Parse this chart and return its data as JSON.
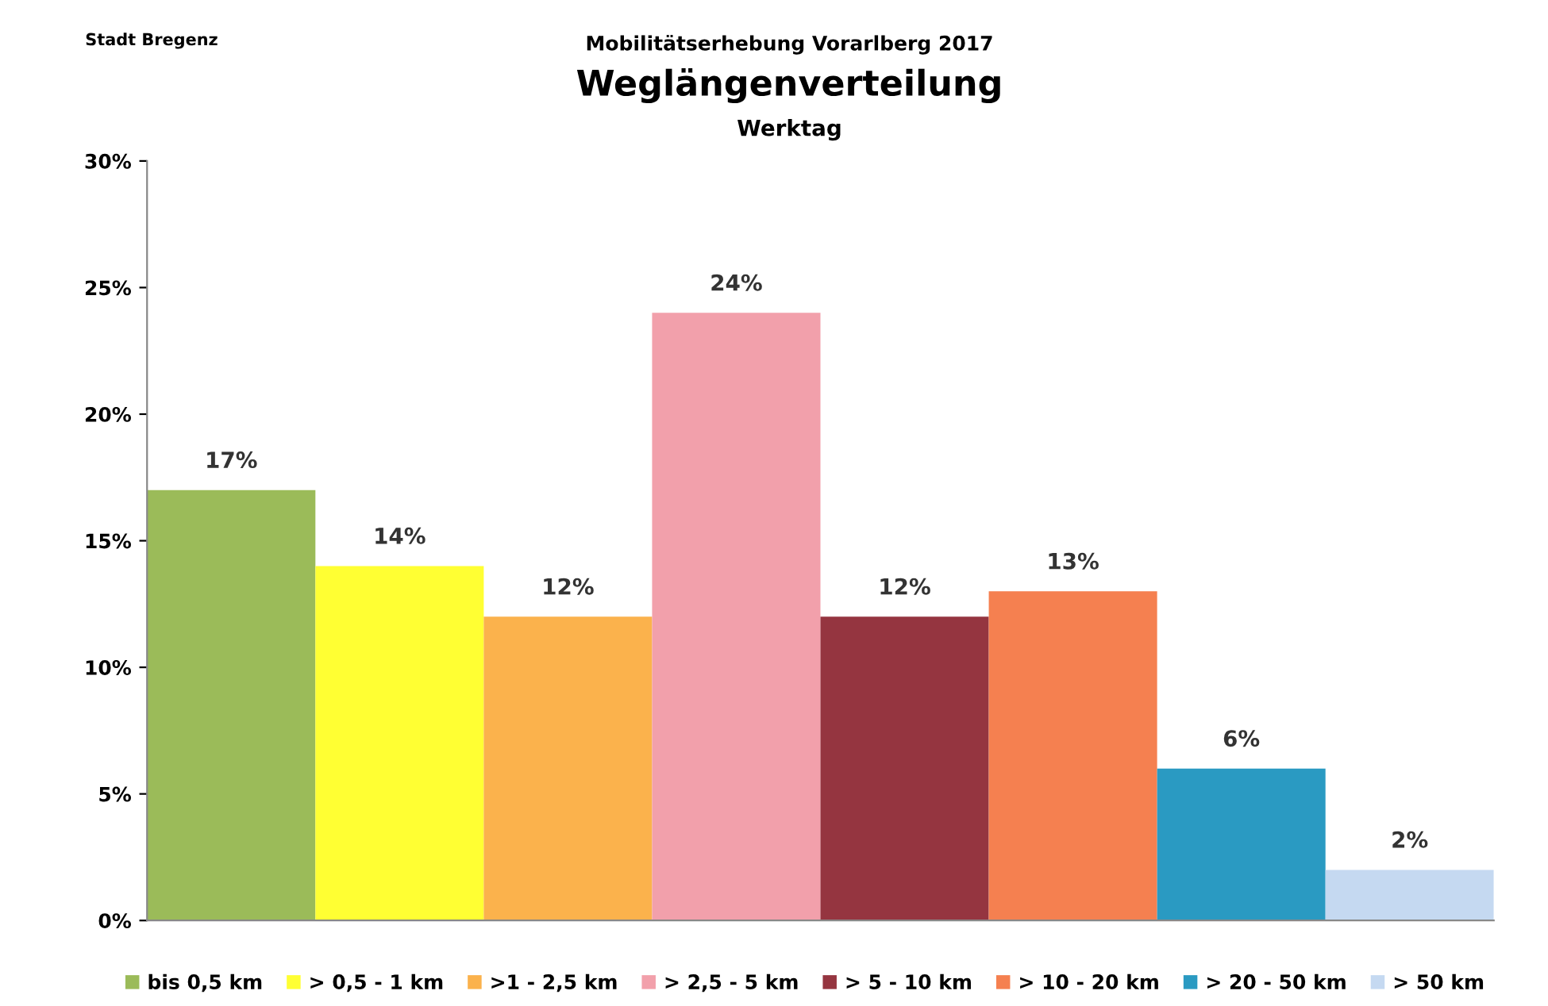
{
  "chart_data": {
    "type": "bar",
    "title": "Weglängenverteilung",
    "subtitle": "Werktag",
    "annotations": [
      "Stadt Bregenz",
      "Mobilitätserhebung Vorarlberg 2017"
    ],
    "categories": [
      null,
      null,
      null,
      null,
      null,
      null,
      null,
      null
    ],
    "series": [
      {
        "name": "bis 0,5 km",
        "color": "#9bbb59",
        "values": [
          17,
          null,
          null,
          null,
          null,
          null,
          null,
          null
        ],
        "value_labels": [
          "17%",
          null,
          null,
          null,
          null,
          null,
          null,
          null
        ]
      },
      {
        "name": "> 0,5 - 1 km",
        "color": "#ffff33",
        "values": [
          null,
          14,
          null,
          null,
          null,
          null,
          null,
          null
        ],
        "value_labels": [
          null,
          "14%",
          null,
          null,
          null,
          null,
          null,
          null
        ]
      },
      {
        "name": ">1 - 2,5 km",
        "color": "#fbb24c",
        "values": [
          null,
          null,
          12,
          null,
          null,
          null,
          null,
          null
        ],
        "value_labels": [
          null,
          null,
          "12%",
          null,
          null,
          null,
          null,
          null
        ]
      },
      {
        "name": "> 2,5 - 5 km",
        "color": "#f2a0ab",
        "values": [
          null,
          null,
          null,
          24,
          null,
          null,
          null,
          null
        ],
        "value_labels": [
          null,
          null,
          null,
          "24%",
          null,
          null,
          null,
          null
        ]
      },
      {
        "name": "> 5 - 10 km",
        "color": "#953540",
        "values": [
          null,
          null,
          null,
          null,
          12,
          null,
          null,
          null
        ],
        "value_labels": [
          null,
          null,
          null,
          null,
          "12%",
          null,
          null,
          null
        ]
      },
      {
        "name": "> 10 - 20 km",
        "color": "#f58050",
        "values": [
          null,
          null,
          null,
          null,
          null,
          13,
          null,
          null
        ],
        "value_labels": [
          null,
          null,
          null,
          null,
          null,
          "13%",
          null,
          null
        ]
      },
      {
        "name": "> 20 - 50 km",
        "color": "#2a9ac2",
        "values": [
          null,
          null,
          null,
          null,
          null,
          null,
          6,
          null
        ],
        "value_labels": [
          null,
          null,
          null,
          null,
          null,
          null,
          "6%",
          null
        ]
      },
      {
        "name": "> 50 km",
        "color": "#c5d9f1",
        "values": [
          null,
          null,
          null,
          null,
          null,
          null,
          null,
          2
        ],
        "value_labels": [
          null,
          null,
          null,
          null,
          null,
          null,
          null,
          "2%"
        ]
      }
    ],
    "ylim": [
      0,
      30
    ],
    "yticks": [
      {
        "value": 0,
        "label": "0%"
      },
      {
        "value": 5,
        "label": "5%"
      },
      {
        "value": 10,
        "label": "10%"
      },
      {
        "value": 15,
        "label": "15%"
      },
      {
        "value": 20,
        "label": "20%"
      },
      {
        "value": 25,
        "label": "25%"
      },
      {
        "value": 30,
        "label": "30%"
      }
    ],
    "grid": false,
    "legend": "bottom"
  }
}
